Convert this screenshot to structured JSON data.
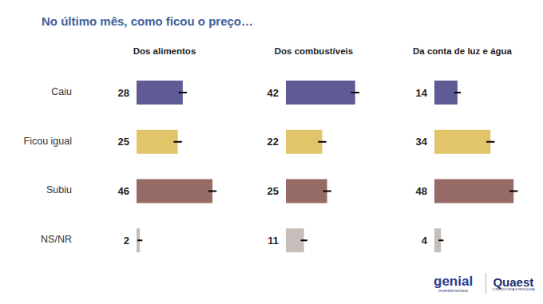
{
  "title": "No último mês, como ficou o preço…",
  "chart_data": [
    {
      "type": "bar",
      "orientation": "horizontal",
      "title": "Dos alimentos",
      "categories": [
        "Caiu",
        "Ficou igual",
        "Subiu",
        "NS/NR"
      ],
      "values": [
        28,
        25,
        46,
        2
      ],
      "error": [
        2.5,
        2.5,
        2.5,
        1.5
      ],
      "colors": [
        "#5f5b94",
        "#e2c46b",
        "#966a65",
        "#c6bebb"
      ],
      "xlim": [
        0,
        60
      ],
      "xticks": [],
      "tick_labels": "y",
      "data_labels": true
    },
    {
      "type": "bar",
      "orientation": "horizontal",
      "title": "Dos combustíveis",
      "categories": [
        "Caiu",
        "Ficou igual",
        "Subiu",
        "NS/NR"
      ],
      "values": [
        42,
        22,
        25,
        11
      ],
      "error": [
        2.5,
        2.5,
        2.5,
        2
      ],
      "colors": [
        "#5f5b94",
        "#e2c46b",
        "#966a65",
        "#c6bebb"
      ],
      "xlim": [
        0,
        60
      ],
      "xticks": [],
      "tick_labels": false,
      "data_labels": true
    },
    {
      "type": "bar",
      "orientation": "horizontal",
      "title": "Da conta de luz e água",
      "categories": [
        "Caiu",
        "Ficou igual",
        "Subiu",
        "NS/NR"
      ],
      "values": [
        14,
        34,
        48,
        4
      ],
      "error": [
        2,
        2.5,
        2.5,
        1.5
      ],
      "colors": [
        "#5f5b94",
        "#e2c46b",
        "#966a65",
        "#c6bebb"
      ],
      "xlim": [
        0,
        60
      ],
      "xticks": [],
      "tick_labels": false,
      "data_labels": true
    }
  ],
  "logos": [
    {
      "name": "genial",
      "sub": "investimentos"
    },
    {
      "name": "Quaest",
      "sub": "CONSULTORIA E PESQUISA"
    }
  ]
}
